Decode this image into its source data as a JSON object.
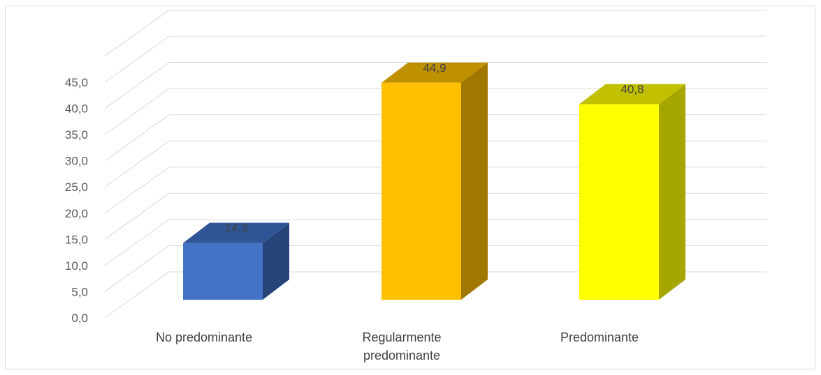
{
  "chart_data": {
    "type": "bar",
    "style": "3d-column",
    "categories": [
      "No predominante",
      "Regularmente predominante",
      "Predominante"
    ],
    "category_lines": [
      [
        "No predominante"
      ],
      [
        "Regularmente",
        "predominante"
      ],
      [
        "Predominante"
      ]
    ],
    "values": [
      14.3,
      44.9,
      40.8
    ],
    "value_labels": [
      "14,3",
      "44,9",
      "40,8"
    ],
    "yticks": [
      0,
      5,
      10,
      15,
      20,
      25,
      30,
      35,
      40,
      45
    ],
    "ytick_labels": [
      "0,0",
      "5,0",
      "10,0",
      "15,0",
      "20,0",
      "25,0",
      "30,0",
      "35,0",
      "40,0",
      "45,0"
    ],
    "ylim": [
      0,
      45
    ],
    "grid": true,
    "legend": "none",
    "title": "",
    "xlabel": "",
    "ylabel": "",
    "colors": [
      {
        "front": "#4472c4",
        "top": "#2f5597",
        "side": "#264478"
      },
      {
        "front": "#ffc000",
        "top": "#bf9000",
        "side": "#a07800"
      },
      {
        "front": "#ffff00",
        "top": "#c0c000",
        "side": "#a6a600"
      }
    ]
  }
}
